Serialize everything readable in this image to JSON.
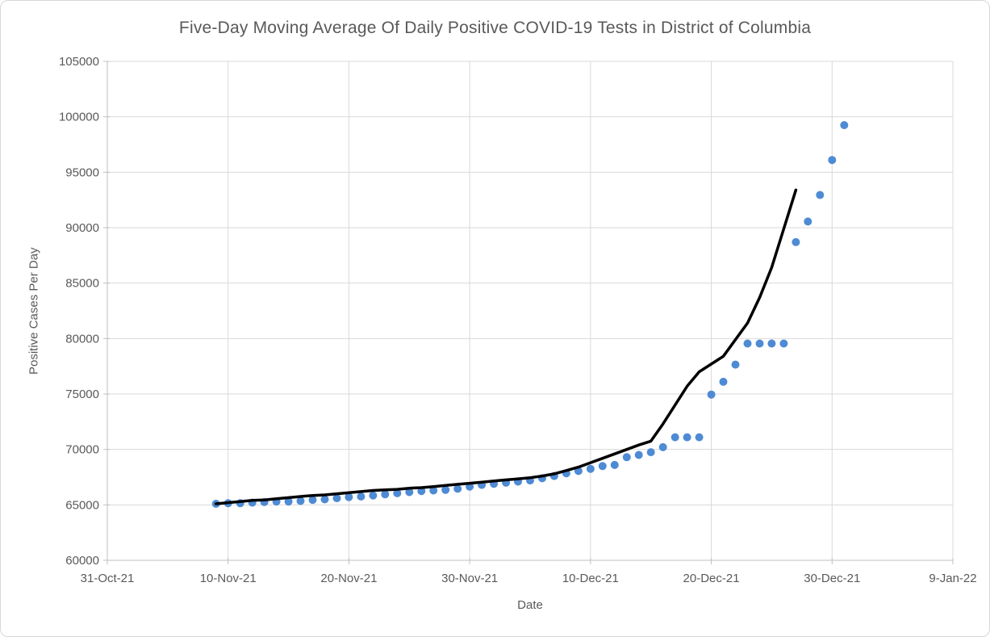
{
  "chart_data": {
    "type": "scatter",
    "title": "Five-Day Moving Average Of Daily Positive COVID-19 Tests in District of Columbia",
    "xlabel": "Date",
    "ylabel": "Positive Cases Per Day",
    "ylim": [
      60000,
      105000
    ],
    "y_tick_step": 5000,
    "y_tick_labels": [
      "60000",
      "65000",
      "70000",
      "75000",
      "80000",
      "85000",
      "90000",
      "95000",
      "100000",
      "105000"
    ],
    "x_axis_start_date": "2021-10-31",
    "x_axis_end_date": "2022-01-09",
    "x_tick_labels": [
      "31-Oct-21",
      "10-Nov-21",
      "20-Nov-21",
      "30-Nov-21",
      "10-Dec-21",
      "20-Dec-21",
      "30-Dec-21",
      "9-Jan-22"
    ],
    "x_tick_dates": [
      "2021-10-31",
      "2021-11-10",
      "2021-11-20",
      "2021-11-30",
      "2021-12-10",
      "2021-12-20",
      "2021-12-30",
      "2022-01-09"
    ],
    "grid": true,
    "legend_position": "none",
    "series": [
      {
        "name": "daily_positive_tests_points",
        "type": "scatter",
        "marker_color": "#4e8bd4",
        "dates": [
          "2021-11-09",
          "2021-11-10",
          "2021-11-11",
          "2021-11-12",
          "2021-11-13",
          "2021-11-14",
          "2021-11-15",
          "2021-11-16",
          "2021-11-17",
          "2021-11-18",
          "2021-11-19",
          "2021-11-20",
          "2021-11-21",
          "2021-11-22",
          "2021-11-23",
          "2021-11-24",
          "2021-11-25",
          "2021-11-26",
          "2021-11-27",
          "2021-11-28",
          "2021-11-29",
          "2021-11-30",
          "2021-12-01",
          "2021-12-02",
          "2021-12-03",
          "2021-12-04",
          "2021-12-05",
          "2021-12-06",
          "2021-12-07",
          "2021-12-08",
          "2021-12-09",
          "2021-12-10",
          "2021-12-11",
          "2021-12-12",
          "2021-12-13",
          "2021-12-14",
          "2021-12-15",
          "2021-12-16",
          "2021-12-17",
          "2021-12-18",
          "2021-12-19",
          "2021-12-20",
          "2021-12-21",
          "2021-12-22",
          "2021-12-23",
          "2021-12-24",
          "2021-12-25",
          "2021-12-26",
          "2021-12-27",
          "2021-12-28",
          "2021-12-29",
          "2021-12-30",
          "2021-12-31"
        ],
        "values": [
          65100,
          65150,
          65150,
          65200,
          65250,
          65300,
          65300,
          65350,
          65450,
          65500,
          65600,
          65700,
          65750,
          65850,
          65950,
          66050,
          66150,
          66250,
          66300,
          66350,
          66450,
          66650,
          66800,
          66900,
          67000,
          67100,
          67200,
          67400,
          67600,
          67850,
          68050,
          68250,
          68500,
          68600,
          69300,
          69500,
          69750,
          70200,
          71100,
          71100,
          71100,
          74950,
          76100,
          77650,
          79550,
          79550,
          79550,
          79550,
          88700,
          90550,
          92950,
          96100,
          99250
        ]
      },
      {
        "name": "five_day_moving_average_line",
        "type": "line",
        "line_color": "#000000",
        "dates": [
          "2021-11-09",
          "2021-11-10",
          "2021-11-11",
          "2021-11-12",
          "2021-11-13",
          "2021-11-14",
          "2021-11-15",
          "2021-11-16",
          "2021-11-17",
          "2021-11-18",
          "2021-11-19",
          "2021-11-20",
          "2021-11-21",
          "2021-11-22",
          "2021-11-23",
          "2021-11-24",
          "2021-11-25",
          "2021-11-26",
          "2021-11-27",
          "2021-11-28",
          "2021-11-29",
          "2021-11-30",
          "2021-12-01",
          "2021-12-02",
          "2021-12-03",
          "2021-12-04",
          "2021-12-05",
          "2021-12-06",
          "2021-12-07",
          "2021-12-08",
          "2021-12-09",
          "2021-12-10",
          "2021-12-11",
          "2021-12-12",
          "2021-12-13",
          "2021-12-14",
          "2021-12-15",
          "2021-12-16",
          "2021-12-17",
          "2021-12-18",
          "2021-12-19",
          "2021-12-20",
          "2021-12-21",
          "2021-12-22",
          "2021-12-23",
          "2021-12-24",
          "2021-12-25",
          "2021-12-26",
          "2021-12-27"
        ],
        "values": [
          65100,
          65200,
          65300,
          65400,
          65450,
          65550,
          65650,
          65750,
          65850,
          65900,
          66000,
          66100,
          66200,
          66300,
          66350,
          66400,
          66500,
          66550,
          66650,
          66750,
          66850,
          66950,
          67050,
          67150,
          67250,
          67350,
          67450,
          67600,
          67800,
          68100,
          68400,
          68800,
          69200,
          69600,
          70000,
          70400,
          70750,
          72300,
          74000,
          75700,
          77000,
          77700,
          78400,
          79900,
          81400,
          83700,
          86400,
          89900,
          93400
        ]
      }
    ],
    "colors": {
      "gridline": "#d9d9d9",
      "axis_line": "#bfbfbf",
      "text": "#595959",
      "scatter_marker": "#4e8bd4",
      "line": "#000000"
    }
  }
}
